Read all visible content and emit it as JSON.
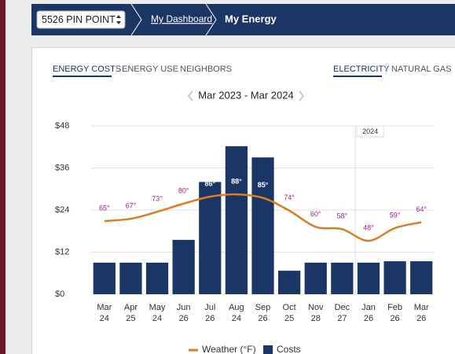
{
  "nav": {
    "property": "5526 PIN POINT",
    "breadcrumb": "My Dashboard",
    "current": "My Energy"
  },
  "tabs": {
    "views": [
      "ENERGY COSTS",
      "ENERGY USE",
      "NEIGHBORS"
    ],
    "fuels": [
      "ELECTRICITY",
      "NATURAL GAS"
    ]
  },
  "period": "Mar 2023 - Mar 2024",
  "chart_data": {
    "type": "bar",
    "categories": [
      [
        "Mar",
        "24"
      ],
      [
        "Apr",
        "25"
      ],
      [
        "May",
        "24"
      ],
      [
        "Jun",
        "26"
      ],
      [
        "Jul",
        "26"
      ],
      [
        "Aug",
        "24"
      ],
      [
        "Sep",
        "26"
      ],
      [
        "Oct",
        "25"
      ],
      [
        "Nov",
        "28"
      ],
      [
        "Dec",
        "27"
      ],
      [
        "Jan",
        "26"
      ],
      [
        "Feb",
        "26"
      ],
      [
        "Mar",
        "26"
      ]
    ],
    "series": [
      {
        "name": "Costs",
        "type": "bar",
        "color": "#1b3564",
        "values": [
          9,
          9,
          9,
          15.5,
          32,
          42.2,
          39,
          6.7,
          9,
          9,
          9,
          9.4,
          9.4
        ]
      },
      {
        "name": "Weather (°F)",
        "type": "line",
        "axis": "y2",
        "color": "#e07b1f",
        "label_color": "#a0229b",
        "values": [
          65,
          67,
          73,
          80,
          86,
          88,
          85,
          74,
          60,
          58,
          48,
          59,
          64
        ],
        "value_labels": [
          "65°",
          "67°",
          "73°",
          "80°",
          "86°",
          "88°",
          "85°",
          "74°",
          "60°",
          "58°",
          "48°",
          "59°",
          "64°"
        ]
      }
    ],
    "ylim": [
      0,
      48
    ],
    "yticks": [
      {
        "value": 0,
        "label": "$0"
      },
      {
        "value": 12,
        "label": "$12"
      },
      {
        "value": 24,
        "label": "$24"
      },
      {
        "value": 36,
        "label": "$36"
      },
      {
        "value": 48,
        "label": "$48"
      }
    ],
    "y2lim": [
      2,
      147
    ],
    "grid": true,
    "year_marker": "2024"
  }
}
